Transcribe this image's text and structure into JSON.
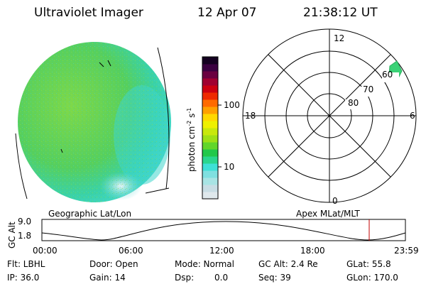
{
  "header": {
    "title": "Ultraviolet Imager",
    "date": "12 Apr 07",
    "time": "21:38:12 UT"
  },
  "colorbar": {
    "label_main": "photon cm",
    "label_exp1": "-2",
    "label_mid": "s",
    "label_exp2": "-1",
    "ticks": [
      "100",
      "10"
    ],
    "colors": [
      "#dfe8ec",
      "#c8dde4",
      "#a8e4e4",
      "#7fe0e0",
      "#3ee0d6",
      "#2ad68e",
      "#22c84a",
      "#62d62a",
      "#9ee016",
      "#c8e80c",
      "#eef000",
      "#ffd800",
      "#ffa000",
      "#ff6a00",
      "#ee2a00",
      "#cc0010",
      "#a00030",
      "#6a0040",
      "#3a0040",
      "#140020"
    ]
  },
  "polar": {
    "label_top": "12",
    "label_bottom": "0",
    "label_left": "18",
    "label_right": "6",
    "ring_labels": [
      "60",
      "70",
      "80"
    ]
  },
  "projection_labels": {
    "left": "Geographic Lat/Lon",
    "right": "Apex MLat/MLT"
  },
  "timeline": {
    "ylabel": "GC Alt",
    "yticks": [
      "9.0",
      "1.8"
    ],
    "xticks": [
      "00:00",
      "06:00",
      "12:00",
      "18:00",
      "23:59"
    ]
  },
  "footer": {
    "flt": "Flt: LBHL",
    "door": "Door: Open",
    "mode": "Mode: Normal",
    "gcalt": "GC Alt: 2.4 Re",
    "glat": "GLat: 55.8",
    "ip": "IP: 36.0",
    "gain": "Gain: 14",
    "dsp_label": "Dsp:",
    "dsp_value": "0.0",
    "seq": "Seq: 39",
    "glon": "GLon: 170.0"
  }
}
